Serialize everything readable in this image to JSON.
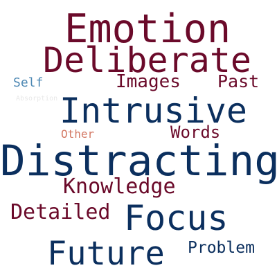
{
  "words": [
    {
      "id": "emotion",
      "text": "Emotion",
      "color": "#6b0a2a"
    },
    {
      "id": "deliberate",
      "text": "Deliberate",
      "color": "#6b0a2a"
    },
    {
      "id": "self",
      "text": "Self",
      "color": "#4d88b3"
    },
    {
      "id": "images",
      "text": "Images",
      "color": "#6b0a2a"
    },
    {
      "id": "past",
      "text": "Past",
      "color": "#6b0a2a"
    },
    {
      "id": "absorption",
      "text": "Absorption",
      "color": "#e8e8e8"
    },
    {
      "id": "intrusive",
      "text": "Intrusive",
      "color": "#0b2f5e"
    },
    {
      "id": "other",
      "text": "Other",
      "color": "#d47a66"
    },
    {
      "id": "words",
      "text": "Words",
      "color": "#6b0a2a"
    },
    {
      "id": "distracting",
      "text": "Distracting",
      "color": "#0b2f5e"
    },
    {
      "id": "knowledge",
      "text": "Knowledge",
      "color": "#6b0a2a"
    },
    {
      "id": "detailed",
      "text": "Detailed",
      "color": "#6b0a2a"
    },
    {
      "id": "focus",
      "text": "Focus",
      "color": "#0b2f5e"
    },
    {
      "id": "future",
      "text": "Future",
      "color": "#0b2f5e"
    },
    {
      "id": "problem",
      "text": "Problem",
      "color": "#0b2f5e"
    }
  ]
}
